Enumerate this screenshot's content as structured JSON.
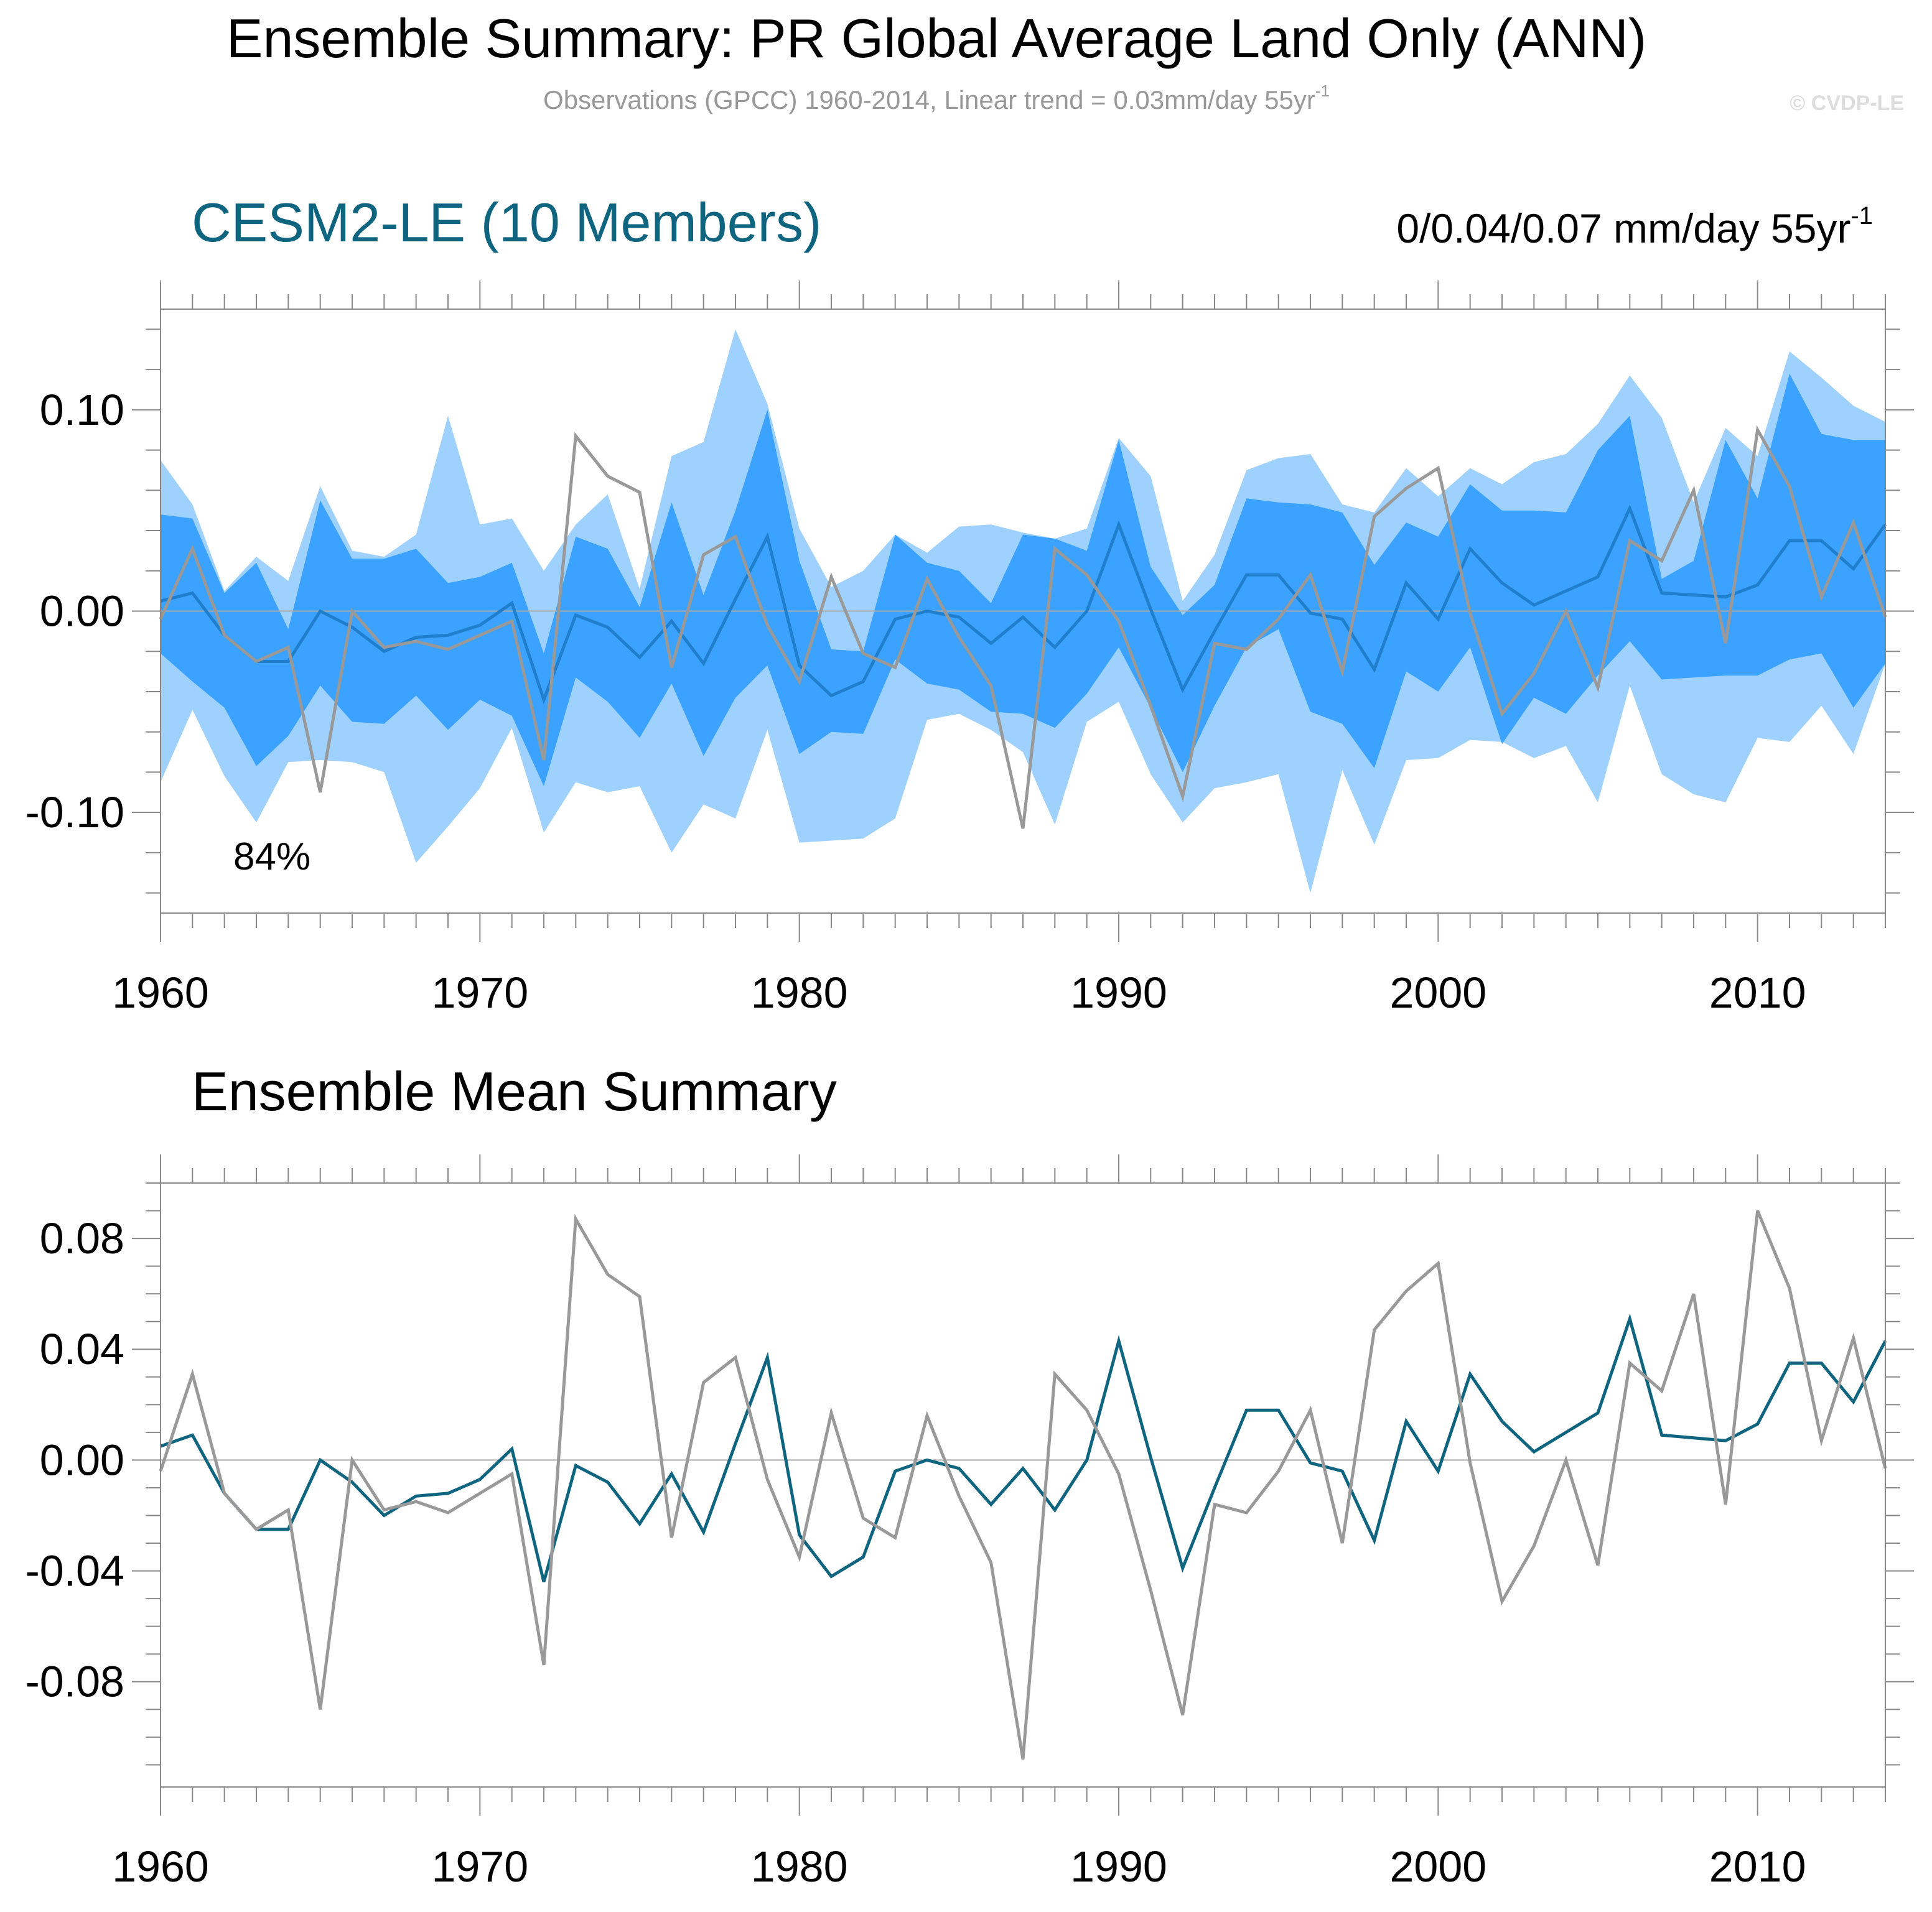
{
  "header": {
    "title": "Ensemble Summary: PR Global Average Land Only (ANN)",
    "subtitle_main": "Observations (GPCC) 1960-2014, Linear trend = 0.03mm/day 55yr",
    "subtitle_sup": "-1",
    "copyright": "© CVDP-LE"
  },
  "top_panel": {
    "model_label": "CESM2-LE (10 Members)",
    "trend_label_main": "0/0.04/0.07 mm/day 55yr",
    "trend_label_sup": "-1",
    "percent_label": "84%"
  },
  "bottom_panel": {
    "title": "Ensemble Mean Summary"
  },
  "colors": {
    "band_outer": "#9fd1ff",
    "band_inner": "#3ba3ff",
    "ens_mean_top": "#1f7fcc",
    "ens_mean_bottom": "#0f6580",
    "observations": "#999999",
    "model_label": "#0f6580",
    "zero_line": "#aaaaaa",
    "frame": "#888888"
  },
  "chart_data": [
    {
      "type": "area",
      "title": "CESM2-LE (10 Members)",
      "xlim": [
        1960,
        2014
      ],
      "ylim": [
        -0.15,
        0.15
      ],
      "x_ticks": [
        1960,
        1970,
        1980,
        1990,
        2000,
        2010
      ],
      "y_ticks": [
        0.1,
        0.0,
        -0.1
      ],
      "y_tick_labels": [
        "0.10",
        "0.00",
        "-0.10"
      ],
      "x": [
        1960,
        1961,
        1962,
        1963,
        1964,
        1965,
        1966,
        1967,
        1968,
        1969,
        1970,
        1971,
        1972,
        1973,
        1974,
        1975,
        1976,
        1977,
        1978,
        1979,
        1980,
        1981,
        1982,
        1983,
        1984,
        1985,
        1986,
        1987,
        1988,
        1989,
        1990,
        1991,
        1992,
        1993,
        1994,
        1995,
        1996,
        1997,
        1998,
        1999,
        2000,
        2001,
        2002,
        2003,
        2004,
        2005,
        2006,
        2007,
        2008,
        2009,
        2010,
        2011,
        2012,
        2013,
        2014
      ],
      "outer_upper": [
        0.075,
        0.053,
        0.01,
        0.027,
        0.015,
        0.062,
        0.03,
        0.027,
        0.038,
        0.097,
        0.043,
        0.046,
        0.02,
        0.043,
        0.058,
        0.011,
        0.077,
        0.084,
        0.14,
        0.103,
        0.041,
        0.012,
        0.02,
        0.038,
        0.029,
        0.042,
        0.043,
        0.039,
        0.036,
        0.041,
        0.086,
        0.067,
        0.005,
        0.028,
        0.07,
        0.076,
        0.078,
        0.053,
        0.049,
        0.071,
        0.057,
        0.071,
        0.063,
        0.074,
        0.078,
        0.093,
        0.117,
        0.096,
        0.054,
        0.091,
        0.077,
        0.129,
        0.116,
        0.102,
        0.094
      ],
      "inner_upper": [
        0.048,
        0.046,
        0.009,
        0.024,
        -0.009,
        0.055,
        0.026,
        0.026,
        0.031,
        0.014,
        0.017,
        0.024,
        -0.021,
        0.037,
        0.031,
        0.002,
        0.054,
        0.008,
        0.05,
        0.1,
        0.025,
        -0.019,
        -0.02,
        0.038,
        0.024,
        0.02,
        0.004,
        0.038,
        0.036,
        0.03,
        0.085,
        0.022,
        -0.002,
        0.013,
        0.056,
        0.054,
        0.053,
        0.049,
        0.023,
        0.044,
        0.037,
        0.063,
        0.05,
        0.05,
        0.049,
        0.08,
        0.097,
        0.016,
        0.025,
        0.085,
        0.056,
        0.118,
        0.088,
        0.085,
        0.085
      ],
      "inner_lower": [
        -0.021,
        -0.035,
        -0.048,
        -0.077,
        -0.062,
        -0.037,
        -0.055,
        -0.056,
        -0.042,
        -0.059,
        -0.044,
        -0.052,
        -0.087,
        -0.033,
        -0.045,
        -0.063,
        -0.036,
        -0.072,
        -0.043,
        -0.027,
        -0.071,
        -0.06,
        -0.061,
        -0.024,
        -0.036,
        -0.039,
        -0.05,
        -0.051,
        -0.058,
        -0.041,
        -0.018,
        -0.048,
        -0.08,
        -0.047,
        -0.018,
        -0.009,
        -0.05,
        -0.056,
        -0.078,
        -0.03,
        -0.04,
        -0.018,
        -0.066,
        -0.043,
        -0.051,
        -0.032,
        -0.015,
        -0.034,
        -0.033,
        -0.032,
        -0.032,
        -0.024,
        -0.021,
        -0.048,
        -0.026
      ],
      "outer_lower": [
        -0.085,
        -0.049,
        -0.082,
        -0.105,
        -0.075,
        -0.074,
        -0.075,
        -0.08,
        -0.125,
        -0.107,
        -0.088,
        -0.058,
        -0.11,
        -0.085,
        -0.09,
        -0.087,
        -0.12,
        -0.096,
        -0.103,
        -0.059,
        -0.115,
        -0.114,
        -0.113,
        -0.103,
        -0.054,
        -0.051,
        -0.059,
        -0.07,
        -0.106,
        -0.055,
        -0.045,
        -0.081,
        -0.105,
        -0.088,
        -0.085,
        -0.081,
        -0.14,
        -0.079,
        -0.116,
        -0.074,
        -0.073,
        -0.064,
        -0.065,
        -0.073,
        -0.067,
        -0.095,
        -0.037,
        -0.081,
        -0.091,
        -0.095,
        -0.063,
        -0.065,
        -0.047,
        -0.071,
        -0.026
      ],
      "series": [
        {
          "name": "",
          "role": "ensemble_mean",
          "values": [
            0.005,
            0.009,
            -0.012,
            -0.025,
            -0.025,
            0.0,
            -0.008,
            -0.02,
            -0.013,
            -0.012,
            -0.007,
            0.004,
            -0.044,
            -0.002,
            -0.008,
            -0.023,
            -0.005,
            -0.026,
            0.006,
            0.037,
            -0.027,
            -0.042,
            -0.035,
            -0.004,
            0.0,
            -0.003,
            -0.016,
            -0.003,
            -0.018,
            0.0,
            0.043,
            0.001,
            -0.039,
            -0.01,
            0.018,
            0.018,
            -0.001,
            -0.004,
            -0.029,
            0.014,
            -0.004,
            0.031,
            0.014,
            0.003,
            0.01,
            0.017,
            0.051,
            0.009,
            0.008,
            0.007,
            0.013,
            0.035,
            0.035,
            0.021,
            0.043
          ]
        },
        {
          "name": "",
          "role": "observations",
          "values": [
            -0.004,
            0.031,
            -0.012,
            -0.025,
            -0.018,
            -0.09,
            0.0,
            -0.018,
            -0.015,
            -0.019,
            -0.012,
            -0.005,
            -0.074,
            0.087,
            0.067,
            0.059,
            -0.028,
            0.028,
            0.037,
            -0.007,
            -0.035,
            0.017,
            -0.021,
            -0.028,
            0.016,
            -0.013,
            -0.037,
            -0.108,
            0.031,
            0.018,
            -0.005,
            -0.047,
            -0.092,
            -0.016,
            -0.019,
            -0.004,
            0.018,
            -0.03,
            0.047,
            0.061,
            0.071,
            -0.001,
            -0.051,
            -0.031,
            0.0,
            -0.038,
            0.035,
            0.025,
            0.06,
            -0.016,
            0.09,
            0.062,
            0.007,
            0.044,
            -0.003
          ]
        }
      ]
    },
    {
      "type": "line",
      "title": "Ensemble Mean Summary",
      "xlim": [
        1960,
        2014
      ],
      "ylim": [
        -0.118,
        0.1
      ],
      "x_ticks": [
        1960,
        1970,
        1980,
        1990,
        2000,
        2010
      ],
      "y_ticks": [
        0.08,
        0.04,
        0.0,
        -0.04,
        -0.08
      ],
      "y_tick_labels": [
        "0.08",
        "0.04",
        "0.00",
        "-0.04",
        "-0.08"
      ],
      "x": [
        1960,
        1961,
        1962,
        1963,
        1964,
        1965,
        1966,
        1967,
        1968,
        1969,
        1970,
        1971,
        1972,
        1973,
        1974,
        1975,
        1976,
        1977,
        1978,
        1979,
        1980,
        1981,
        1982,
        1983,
        1984,
        1985,
        1986,
        1987,
        1988,
        1989,
        1990,
        1991,
        1992,
        1993,
        1994,
        1995,
        1996,
        1997,
        1998,
        1999,
        2000,
        2001,
        2002,
        2003,
        2004,
        2005,
        2006,
        2007,
        2008,
        2009,
        2010,
        2011,
        2012,
        2013,
        2014
      ],
      "series": [
        {
          "name": "",
          "role": "ensemble_mean",
          "values": [
            0.005,
            0.009,
            -0.012,
            -0.025,
            -0.025,
            0.0,
            -0.008,
            -0.02,
            -0.013,
            -0.012,
            -0.007,
            0.004,
            -0.044,
            -0.002,
            -0.008,
            -0.023,
            -0.005,
            -0.026,
            0.006,
            0.037,
            -0.027,
            -0.042,
            -0.035,
            -0.004,
            0.0,
            -0.003,
            -0.016,
            -0.003,
            -0.018,
            0.0,
            0.043,
            0.001,
            -0.039,
            -0.01,
            0.018,
            0.018,
            -0.001,
            -0.004,
            -0.029,
            0.014,
            -0.004,
            0.031,
            0.014,
            0.003,
            0.01,
            0.017,
            0.051,
            0.009,
            0.008,
            0.007,
            0.013,
            0.035,
            0.035,
            0.021,
            0.043
          ]
        },
        {
          "name": "",
          "role": "observations",
          "values": [
            -0.004,
            0.031,
            -0.012,
            -0.025,
            -0.018,
            -0.09,
            0.0,
            -0.018,
            -0.015,
            -0.019,
            -0.012,
            -0.005,
            -0.074,
            0.087,
            0.067,
            0.059,
            -0.028,
            0.028,
            0.037,
            -0.007,
            -0.035,
            0.017,
            -0.021,
            -0.028,
            0.016,
            -0.013,
            -0.037,
            -0.108,
            0.031,
            0.018,
            -0.005,
            -0.047,
            -0.092,
            -0.016,
            -0.019,
            -0.004,
            0.018,
            -0.03,
            0.047,
            0.061,
            0.071,
            -0.001,
            -0.051,
            -0.031,
            0.0,
            -0.038,
            0.035,
            0.025,
            0.06,
            -0.016,
            0.09,
            0.062,
            0.007,
            0.044,
            -0.003
          ]
        }
      ]
    }
  ]
}
